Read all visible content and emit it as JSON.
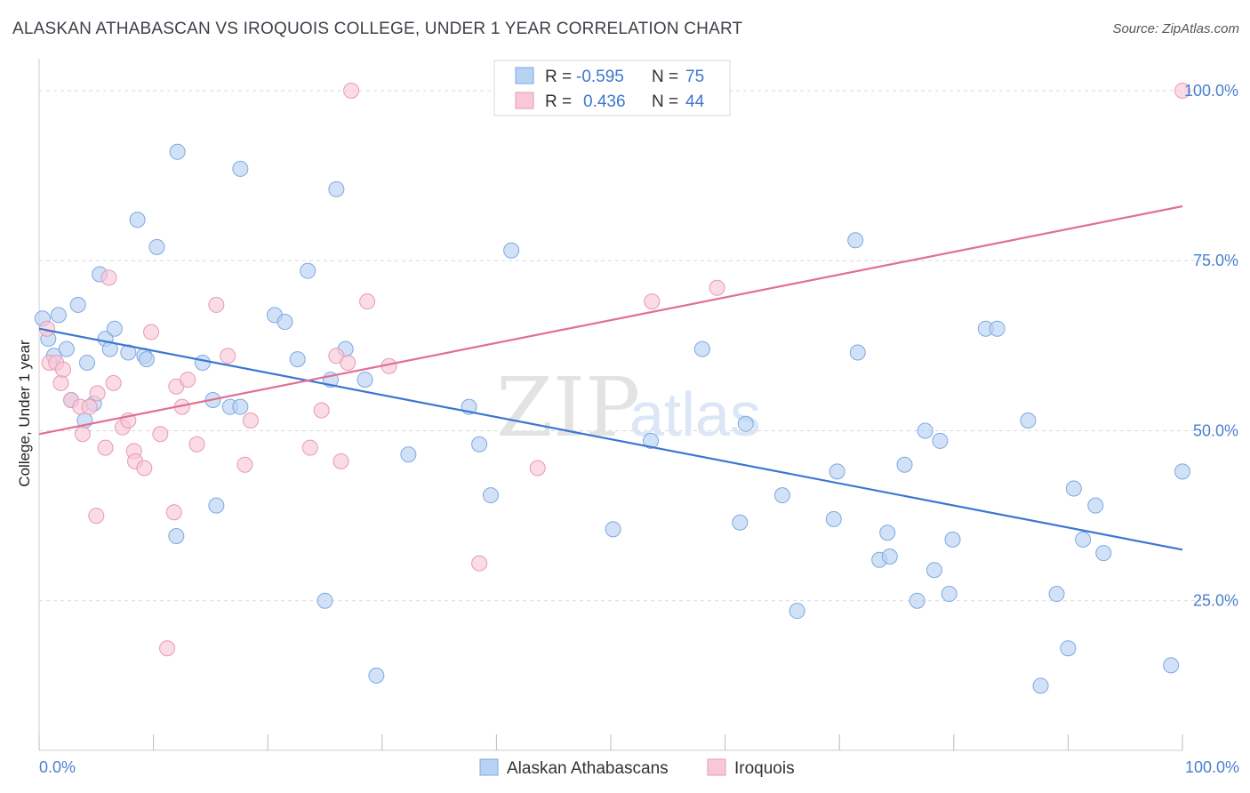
{
  "header": {
    "title": "ALASKAN ATHABASCAN VS IROQUOIS COLLEGE, UNDER 1 YEAR CORRELATION CHART",
    "source": "Source: ZipAtlas.com"
  },
  "watermark": {
    "zip": "ZIP",
    "atlas": "atlas"
  },
  "colors": {
    "blue_fill": "#b8d2f4",
    "blue_stroke": "#7ea8e0",
    "blue_line": "#3d76d0",
    "pink_fill": "#f8c8d8",
    "pink_stroke": "#e89ab3",
    "pink_line": "#e07095",
    "grid": "#d9d9d9",
    "tick_text": "#4a7fd0"
  },
  "stats_legend": {
    "rows": [
      {
        "r_label": "R = ",
        "r_value": "-0.595",
        "n_label": "N = ",
        "n_value": "75",
        "swatch": "blue"
      },
      {
        "r_label": "R = ",
        "r_value": "0.436",
        "n_label": "N = ",
        "n_value": "44",
        "swatch": "pink"
      }
    ]
  },
  "chart_data": {
    "type": "scatter",
    "title": "ALASKAN ATHABASCAN VS IROQUOIS COLLEGE, UNDER 1 YEAR CORRELATION CHART",
    "xlabel": "",
    "ylabel": "College, Under 1 year",
    "xlim": [
      0,
      100
    ],
    "ylim": [
      3,
      103
    ],
    "x_tick_labels": [
      "0.0%",
      "100.0%"
    ],
    "y_ticks": [
      25,
      50,
      75,
      100
    ],
    "y_tick_labels": [
      "25.0%",
      "50.0%",
      "75.0%",
      "100.0%"
    ],
    "grid": true,
    "legend_position": "bottom-center",
    "series": [
      {
        "name": "Alaskan Athabascans",
        "color": "#b8d2f4",
        "trend": {
          "x": [
            0,
            100
          ],
          "y": [
            65.0,
            32.5
          ]
        },
        "points": [
          [
            0.3,
            66.5
          ],
          [
            0.8,
            63.5
          ],
          [
            1.7,
            67
          ],
          [
            1.3,
            61
          ],
          [
            2.4,
            62
          ],
          [
            3.4,
            68.5
          ],
          [
            4.2,
            60
          ],
          [
            2.8,
            54.5
          ],
          [
            4.0,
            51.5
          ],
          [
            4.8,
            54
          ],
          [
            5.3,
            73
          ],
          [
            5.8,
            63.5
          ],
          [
            6.2,
            62
          ],
          [
            6.6,
            65
          ],
          [
            7.8,
            61.5
          ],
          [
            8.6,
            81
          ],
          [
            9.2,
            61
          ],
          [
            9.4,
            60.5
          ],
          [
            10.3,
            77
          ],
          [
            12.1,
            91
          ],
          [
            12.0,
            34.5
          ],
          [
            14.3,
            60
          ],
          [
            15.2,
            54.5
          ],
          [
            15.5,
            39
          ],
          [
            16.7,
            53.5
          ],
          [
            17.6,
            53.5
          ],
          [
            17.6,
            88.5
          ],
          [
            20.6,
            67
          ],
          [
            21.5,
            66
          ],
          [
            22.6,
            60.5
          ],
          [
            23.5,
            73.5
          ],
          [
            25.0,
            25
          ],
          [
            25.5,
            57.5
          ],
          [
            26.0,
            85.5
          ],
          [
            26.8,
            62
          ],
          [
            28.5,
            57.5
          ],
          [
            29.5,
            14
          ],
          [
            32.3,
            46.5
          ],
          [
            37.6,
            53.5
          ],
          [
            38.5,
            48
          ],
          [
            39.5,
            40.5
          ],
          [
            41.3,
            76.5
          ],
          [
            50.2,
            35.5
          ],
          [
            53.5,
            48.5
          ],
          [
            58.0,
            62
          ],
          [
            61.3,
            36.5
          ],
          [
            61.8,
            51
          ],
          [
            65.0,
            40.5
          ],
          [
            66.3,
            23.5
          ],
          [
            69.5,
            37
          ],
          [
            69.8,
            44
          ],
          [
            71.4,
            78
          ],
          [
            71.6,
            61.5
          ],
          [
            73.5,
            31
          ],
          [
            74.4,
            31.5
          ],
          [
            74.2,
            35
          ],
          [
            75.7,
            45
          ],
          [
            76.8,
            25
          ],
          [
            77.5,
            50
          ],
          [
            78.3,
            29.5
          ],
          [
            78.8,
            48.5
          ],
          [
            79.6,
            26
          ],
          [
            79.9,
            34
          ],
          [
            82.8,
            65
          ],
          [
            83.8,
            65
          ],
          [
            86.5,
            51.5
          ],
          [
            87.6,
            12.5
          ],
          [
            89.0,
            26
          ],
          [
            90.0,
            18
          ],
          [
            90.5,
            41.5
          ],
          [
            91.3,
            34
          ],
          [
            92.4,
            39
          ],
          [
            93.1,
            32
          ],
          [
            99.0,
            15.5
          ],
          [
            100.0,
            44
          ]
        ]
      },
      {
        "name": "Iroquois",
        "color": "#f8c8d8",
        "trend": {
          "x": [
            0,
            100
          ],
          "y": [
            49.5,
            83.0
          ]
        },
        "points": [
          [
            0.7,
            65
          ],
          [
            0.9,
            60
          ],
          [
            1.5,
            60
          ],
          [
            1.9,
            57
          ],
          [
            2.1,
            59
          ],
          [
            2.8,
            54.5
          ],
          [
            3.6,
            53.5
          ],
          [
            3.8,
            49.5
          ],
          [
            4.4,
            53.5
          ],
          [
            5.1,
            55.5
          ],
          [
            5.0,
            37.5
          ],
          [
            5.8,
            47.5
          ],
          [
            6.1,
            72.5
          ],
          [
            6.5,
            57
          ],
          [
            7.3,
            50.5
          ],
          [
            7.8,
            51.5
          ],
          [
            8.3,
            47
          ],
          [
            8.4,
            45.5
          ],
          [
            9.2,
            44.5
          ],
          [
            9.8,
            64.5
          ],
          [
            10.6,
            49.5
          ],
          [
            11.2,
            18
          ],
          [
            11.8,
            38
          ],
          [
            12.0,
            56.5
          ],
          [
            12.5,
            53.5
          ],
          [
            13.0,
            57.5
          ],
          [
            13.8,
            48
          ],
          [
            15.5,
            68.5
          ],
          [
            16.5,
            61
          ],
          [
            18.0,
            45
          ],
          [
            18.5,
            51.5
          ],
          [
            23.7,
            47.5
          ],
          [
            24.7,
            53
          ],
          [
            26.0,
            61
          ],
          [
            26.4,
            45.5
          ],
          [
            27.0,
            60
          ],
          [
            27.3,
            100
          ],
          [
            28.7,
            69
          ],
          [
            30.6,
            59.5
          ],
          [
            38.5,
            30.5
          ],
          [
            43.6,
            44.5
          ],
          [
            53.6,
            69
          ],
          [
            59.3,
            71
          ],
          [
            100.0,
            100
          ]
        ]
      }
    ]
  }
}
